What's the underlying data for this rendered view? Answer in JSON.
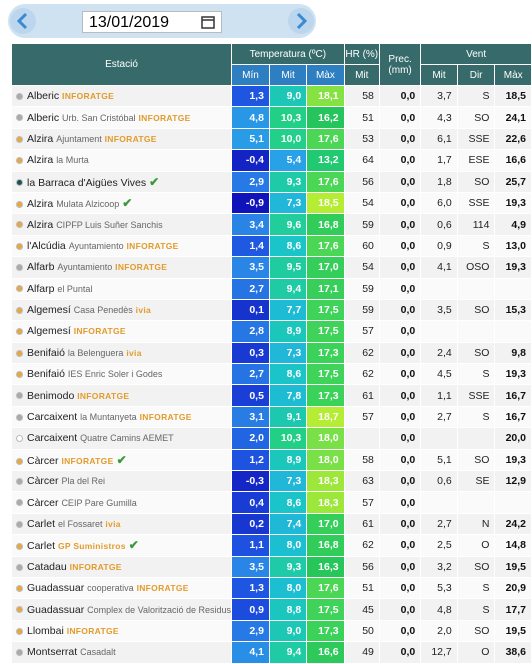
{
  "date": "13/01/2019",
  "header": {
    "station": "Estació",
    "temperature": "Temperatura (ºC)",
    "humidity": "HR (%)",
    "precipitation": "Prec.",
    "precipitation_unit": "(mm)",
    "wind": "Vent"
  },
  "subheader": {
    "temp_min": "Mín",
    "temp_avg": "Mit",
    "temp_max": "Màx",
    "hr_avg": "Mit",
    "wind_avg": "Mit",
    "wind_dir": "Dir",
    "wind_max": "Màx"
  },
  "rows": [
    {
      "dot": "#aaaaaa",
      "name": "Alberic",
      "sub": null,
      "org": "INFORATGE",
      "check": false,
      "cells": [
        "1,3",
        "9,0",
        "18,1",
        "58",
        "0,0",
        "3,7",
        "S",
        "18,5"
      ]
    },
    {
      "dot": "#aaaaaa",
      "name": "Alberic",
      "sub": "Urb. San Cristóbal",
      "org": "INFORATGE",
      "check": false,
      "cells": [
        "4,8",
        "10,3",
        "16,2",
        "51",
        "0,0",
        "4,3",
        "SO",
        "24,1"
      ]
    },
    {
      "dot": "#e8a840",
      "name": "Alzira",
      "sub": "Ajuntament",
      "org": "INFORATGE",
      "check": false,
      "cells": [
        "5,1",
        "10,0",
        "17,6",
        "53",
        "0,0",
        "6,1",
        "SSE",
        "22,6"
      ]
    },
    {
      "dot": "#e8a840",
      "name": "Alzira",
      "sub": "la Murta",
      "org": null,
      "check": false,
      "cells": [
        "-0,4",
        "5,4",
        "13,2",
        "64",
        "0,0",
        "1,7",
        "ESE",
        "16,6"
      ]
    },
    {
      "dot": "#1f4f5a",
      "name": "la Barraca d'Aigües Vives",
      "sub": null,
      "org": null,
      "check": true,
      "cells": [
        "2,9",
        "9,3",
        "17,6",
        "56",
        "0,0",
        "1,8",
        "SO",
        "25,7"
      ]
    },
    {
      "dot": "#e8a840",
      "name": "Alzira",
      "sub": "Mulata Alzicoop",
      "org": null,
      "check": true,
      "cells": [
        "-0,9",
        "7,3",
        "18,5",
        "54",
        "0,0",
        "6,0",
        "SSE",
        "19,3"
      ]
    },
    {
      "dot": "#e8a840",
      "name": "Alzira",
      "sub": "CIPFP Luis Suñer Sanchis",
      "org": null,
      "check": false,
      "cells": [
        "3,4",
        "9,6",
        "16,8",
        "59",
        "0,0",
        "0,6",
        "114",
        "4,9"
      ]
    },
    {
      "dot": "#e8a840",
      "name": "l'Alcúdia",
      "sub": "Ayuntamiento",
      "org": "INFORATGE",
      "check": false,
      "cells": [
        "1,4",
        "8,6",
        "17,6",
        "60",
        "0,0",
        "0,9",
        "S",
        "13,0"
      ]
    },
    {
      "dot": "#aaaaaa",
      "name": "Alfarb",
      "sub": "Ayuntamiento",
      "org": "INFORATGE",
      "check": false,
      "cells": [
        "3,5",
        "9,5",
        "17,0",
        "54",
        "0,0",
        "4,1",
        "OSO",
        "19,3"
      ]
    },
    {
      "dot": "#e8a840",
      "name": "Alfarp",
      "sub": "el Puntal",
      "org": null,
      "check": false,
      "cells": [
        "2,7",
        "9,4",
        "17,1",
        "59",
        "0,0",
        null,
        null,
        null
      ]
    },
    {
      "dot": "#e8a840",
      "name": "Algemesí",
      "sub": "Casa Penedès",
      "org": "ivia",
      "check": false,
      "cells": [
        "0,1",
        "7,7",
        "17,5",
        "59",
        "0,0",
        "3,5",
        "SO",
        "15,3"
      ]
    },
    {
      "dot": "#e8a840",
      "name": "Algemesí",
      "sub": null,
      "org": "INFORATGE",
      "check": false,
      "cells": [
        "2,8",
        "8,9",
        "17,5",
        "57",
        "0,0",
        null,
        null,
        null
      ]
    },
    {
      "dot": "#e8a840",
      "name": "Benifaió",
      "sub": "la Belenguera",
      "org": "ivia",
      "check": false,
      "cells": [
        "0,3",
        "7,3",
        "17,3",
        "62",
        "0,0",
        "2,4",
        "SO",
        "9,8"
      ]
    },
    {
      "dot": "#e8a840",
      "name": "Benifaió",
      "sub": "IES Enric Soler i Godes",
      "org": null,
      "check": false,
      "cells": [
        "2,7",
        "8,6",
        "17,5",
        "62",
        "0,0",
        "4,5",
        "S",
        "19,3"
      ]
    },
    {
      "dot": "#aaaaaa",
      "name": "Benimodo",
      "sub": null,
      "org": "INFORATGE",
      "check": false,
      "cells": [
        "0,5",
        "7,8",
        "17,3",
        "61",
        "0,0",
        "1,1",
        "SSE",
        "16,7"
      ]
    },
    {
      "dot": "#aaaaaa",
      "name": "Carcaixent",
      "sub": "la Muntanyeta",
      "org": "INFORATGE",
      "check": false,
      "cells": [
        "3,1",
        "9,1",
        "18,7",
        "57",
        "0,0",
        "2,7",
        "S",
        "16,7"
      ]
    },
    {
      "dot": "#ffffff",
      "name": "Carcaixent",
      "sub": "Quatre Camins AEMET",
      "org": null,
      "check": false,
      "cells": [
        "2,0",
        "10,3",
        "18,0",
        null,
        "0,0",
        null,
        null,
        "20,0"
      ]
    },
    {
      "dot": "#e8a840",
      "name": "Càrcer",
      "sub": null,
      "org": "INFORATGE",
      "check": true,
      "cells": [
        "1,2",
        "8,9",
        "18,0",
        "58",
        "0,0",
        "5,1",
        "SO",
        "19,3"
      ]
    },
    {
      "dot": "#aaaaaa",
      "name": "Càrcer",
      "sub": "Pla del Rei",
      "org": null,
      "check": false,
      "cells": [
        "-0,3",
        "7,3",
        "18,3",
        "63",
        "0,0",
        "0,6",
        "SE",
        "12,9"
      ]
    },
    {
      "dot": "#aaaaaa",
      "name": "Càrcer",
      "sub": "CEIP Pare Gumilla",
      "org": null,
      "check": false,
      "cells": [
        "0,4",
        "8,6",
        "18,3",
        "57",
        "0,0",
        null,
        null,
        null
      ]
    },
    {
      "dot": "#aaaaaa",
      "name": "Carlet",
      "sub": "el Fossaret",
      "org": "ivia",
      "check": false,
      "cells": [
        "0,2",
        "7,4",
        "17,0",
        "61",
        "0,0",
        "2,7",
        "N",
        "24,2"
      ]
    },
    {
      "dot": "#e8a840",
      "name": "Carlet",
      "sub": null,
      "org": "GP Suministros",
      "check": true,
      "cells": [
        "1,1",
        "8,0",
        "16,8",
        "62",
        "0,0",
        "2,5",
        "O",
        "14,8"
      ]
    },
    {
      "dot": "#aaaaaa",
      "name": "Catadau",
      "sub": null,
      "org": "INFORATGE",
      "check": false,
      "cells": [
        "3,5",
        "9,3",
        "16,3",
        "56",
        "0,0",
        "3,2",
        "SO",
        "19,5"
      ]
    },
    {
      "dot": "#e8a840",
      "name": "Guadassuar",
      "sub": "cooperativa",
      "org": "INFORATGE",
      "check": false,
      "cells": [
        "1,3",
        "8,0",
        "17,6",
        "51",
        "0,0",
        "5,3",
        "S",
        "20,9"
      ]
    },
    {
      "dot": "#e8a840",
      "name": "Guadassuar",
      "sub": "Complex de Valorització de Residus",
      "org": null,
      "check": false,
      "cells": [
        "0,9",
        "8,8",
        "17,5",
        "45",
        "0,0",
        "4,8",
        "S",
        "17,7"
      ]
    },
    {
      "dot": "#e8a840",
      "name": "Llombai",
      "sub": null,
      "org": "INFORATGE",
      "check": false,
      "cells": [
        "2,9",
        "9,0",
        "17,3",
        "50",
        "0,0",
        "2,0",
        "SO",
        "19,5"
      ]
    },
    {
      "dot": "#aaaaaa",
      "name": "Montserrat",
      "sub": "Casadalt",
      "org": null,
      "check": false,
      "cells": [
        "4,1",
        "9,4",
        "16,6",
        "49",
        "0,0",
        "12,7",
        "O",
        "38,6"
      ]
    }
  ]
}
